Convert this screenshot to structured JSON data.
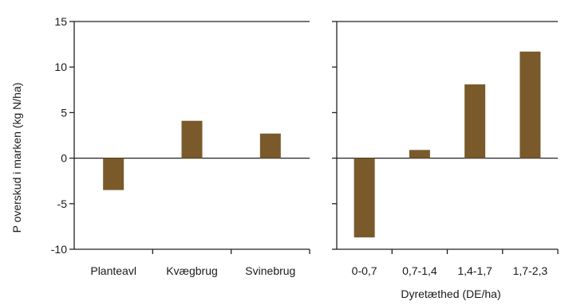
{
  "colors": {
    "bar": "#7a5a2a",
    "axis": "#222222",
    "text": "#1a1a1a"
  },
  "chart_data": [
    {
      "type": "bar",
      "title": "",
      "ylabel": "P overskud i marken (kg N/ha)",
      "xlabel": "",
      "ylim": [
        -10,
        15
      ],
      "yticks": [
        15,
        10,
        5,
        0,
        -5,
        -10
      ],
      "categories": [
        "Planteavl",
        "Kvægbrug",
        "Svinebrug"
      ],
      "values": [
        -3.5,
        4.1,
        2.7
      ]
    },
    {
      "type": "bar",
      "title": "",
      "ylabel": "",
      "xlabel": "Dyretæthed (DE/ha)",
      "ylim": [
        -10,
        15
      ],
      "yticks": [
        15,
        10,
        5,
        0,
        -5,
        -10
      ],
      "categories": [
        "0-0,7",
        "0,7-1,4",
        "1,4-1,7",
        "1,7-2,3"
      ],
      "values": [
        -8.7,
        0.9,
        8.1,
        11.7
      ]
    }
  ]
}
